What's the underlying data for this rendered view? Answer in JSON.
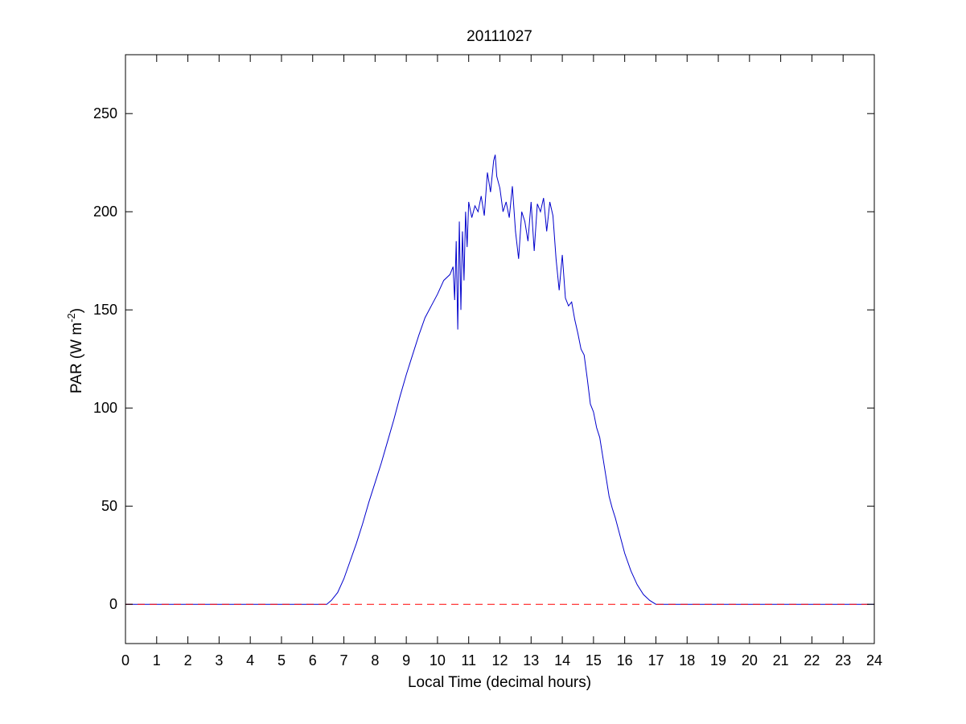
{
  "chart_data": {
    "type": "line",
    "title": "20111027",
    "xlabel": "Local Time (decimal hours)",
    "ylabel": "PAR (W m",
    "ylabel_superscript": "-2",
    "ylabel_close": ")",
    "xlim": [
      0,
      24
    ],
    "ylim": [
      -20,
      280
    ],
    "xticks": [
      0,
      1,
      2,
      3,
      4,
      5,
      6,
      7,
      8,
      9,
      10,
      11,
      12,
      13,
      14,
      15,
      16,
      17,
      18,
      19,
      20,
      21,
      22,
      23,
      24
    ],
    "yticks": [
      0,
      50,
      100,
      150,
      200,
      250
    ],
    "grid": false,
    "legend": "none",
    "series": [
      {
        "color": "#0000cc",
        "style": "solid",
        "x": [
          0,
          6.45,
          6.6,
          6.8,
          7.0,
          7.2,
          7.4,
          7.6,
          7.8,
          8.0,
          8.2,
          8.4,
          8.6,
          8.8,
          9.0,
          9.2,
          9.4,
          9.6,
          9.8,
          10.0,
          10.2,
          10.4,
          10.5,
          10.55,
          10.6,
          10.65,
          10.7,
          10.75,
          10.8,
          10.85,
          10.9,
          10.95,
          11.0,
          11.1,
          11.2,
          11.3,
          11.4,
          11.5,
          11.6,
          11.7,
          11.8,
          11.85,
          11.9,
          12.0,
          12.1,
          12.2,
          12.3,
          12.4,
          12.5,
          12.6,
          12.7,
          12.8,
          12.9,
          13.0,
          13.1,
          13.2,
          13.3,
          13.4,
          13.5,
          13.6,
          13.7,
          13.8,
          13.9,
          14.0,
          14.1,
          14.2,
          14.3,
          14.4,
          14.5,
          14.6,
          14.7,
          14.8,
          14.9,
          15.0,
          15.1,
          15.2,
          15.3,
          15.4,
          15.5,
          15.6,
          15.7,
          15.8,
          15.9,
          16.0,
          16.2,
          16.4,
          16.6,
          16.8,
          17.0,
          17.2,
          17.4,
          17.55,
          18,
          24
        ],
        "y": [
          0,
          0,
          2,
          6,
          13,
          22,
          31,
          41,
          52,
          62,
          72,
          83,
          94,
          106,
          117,
          127,
          137,
          146,
          152,
          158,
          165,
          168,
          172,
          155,
          185,
          140,
          195,
          150,
          190,
          165,
          200,
          182,
          205,
          197,
          203,
          200,
          208,
          198,
          220,
          210,
          226,
          229,
          218,
          212,
          200,
          205,
          197,
          213,
          190,
          176,
          200,
          195,
          185,
          205,
          180,
          204,
          200,
          207,
          190,
          205,
          198,
          176,
          160,
          178,
          156,
          152,
          154,
          145,
          138,
          130,
          127,
          115,
          102,
          98,
          90,
          85,
          75,
          65,
          55,
          49,
          44,
          38,
          32,
          26,
          17,
          10,
          5,
          2,
          0,
          0,
          0,
          0,
          0,
          0
        ]
      },
      {
        "color": "#ff0000",
        "style": "dashed",
        "x": [
          0,
          24
        ],
        "y": [
          0,
          0
        ]
      }
    ]
  }
}
